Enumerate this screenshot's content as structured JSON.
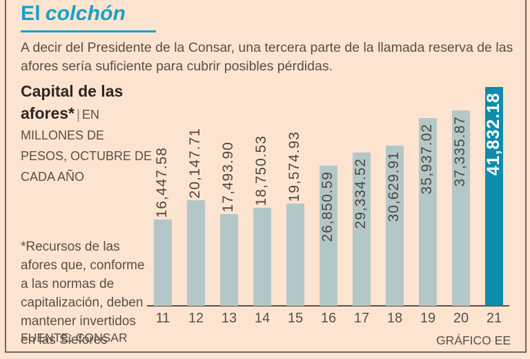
{
  "header": {
    "title_word1": "El",
    "title_word2": "colchón",
    "subtitle": "A decir del Presidente de la Consar, una tercera parte de la llamada reserva de las afores sería suficiente para cubrir posibles pérdidas."
  },
  "panel": {
    "label_bold": "Capital de las afores*",
    "label_sep": "|",
    "label_units": "EN MILLONES DE PESOS, OCTUBRE DE CADA AÑO"
  },
  "footnote": "*Recursos de las afores que, conforme a las normas de capitalización, deben mantener invertidos en las Siefores",
  "source": "FUENTE: CONSAR",
  "credit": "GRÁFICO EE",
  "colors": {
    "background": "#fce4d0",
    "accent_title": "#16a1c7",
    "bar": "#b4c7c8",
    "bar_highlight": "#0e8cab",
    "text_dark": "#2c2722",
    "text_body": "#584f46",
    "value_label": "#4d463f",
    "highlight_value_label": "#ffffff",
    "axis_line": "#55504a",
    "frame_line": "#6f6760"
  },
  "chart_data": {
    "type": "bar",
    "title": "Capital de las afores",
    "subtitle_units": "EN MILLONES DE PESOS, OCTUBRE DE CADA AÑO",
    "xlabel": "",
    "ylabel": "",
    "categories": [
      "11",
      "12",
      "13",
      "14",
      "15",
      "16",
      "17",
      "18",
      "19",
      "20",
      "21"
    ],
    "values": [
      16447.58,
      20147.71,
      17493.9,
      18750.53,
      19574.93,
      26850.59,
      29334.52,
      30629.91,
      35937.02,
      37335.87,
      41832.18
    ],
    "value_labels": [
      "16,447.58",
      "20,147.71",
      "17,493.90",
      "18,750.53",
      "19,574.93",
      "26,850.59",
      "29,334.52",
      "30,629.91",
      "35,937.02",
      "37,335.87",
      "41,832.18"
    ],
    "ylim": [
      0,
      41832.18
    ],
    "grid": false,
    "legend": false,
    "highlight_index": 10,
    "value_label_rotation_deg": 90,
    "value_label_inside_from_index": 5
  }
}
